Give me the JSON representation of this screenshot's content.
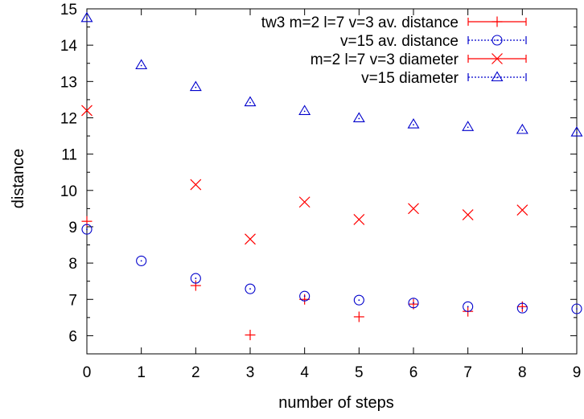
{
  "chart_data": {
    "type": "scatter",
    "title": "",
    "xlabel": "number of steps",
    "ylabel": "distance",
    "xlim": [
      0,
      9
    ],
    "ylim": [
      5.5,
      15
    ],
    "x_ticks": [
      "0",
      "1",
      "2",
      "3",
      "4",
      "5",
      "6",
      "7",
      "8",
      "9"
    ],
    "y_ticks": [
      "6",
      "7",
      "8",
      "9",
      "10",
      "11",
      "12",
      "13",
      "14",
      "15"
    ],
    "grid": false,
    "legend_position": "top-right",
    "series": [
      {
        "name": "tw3 m=2 l=7 v=3  av. distance",
        "marker": "plus",
        "color": "#ff0000",
        "x": [
          0,
          2,
          3,
          4,
          5,
          6,
          7,
          8
        ],
        "y": [
          9.15,
          7.38,
          6.02,
          7.0,
          6.52,
          6.87,
          6.67,
          6.8
        ]
      },
      {
        "name": "v=15 av. distance",
        "marker": "circle",
        "color": "#0000cc",
        "x": [
          0,
          1,
          2,
          3,
          4,
          5,
          6,
          7,
          8,
          9
        ],
        "y": [
          8.93,
          8.06,
          7.58,
          7.29,
          7.09,
          6.98,
          6.9,
          6.8,
          6.76,
          6.74
        ]
      },
      {
        "name": "m=2 l=7 v=3 diameter",
        "marker": "x",
        "color": "#ff0000",
        "x": [
          0,
          2,
          3,
          4,
          5,
          6,
          7,
          8
        ],
        "y": [
          12.2,
          10.16,
          8.66,
          9.68,
          9.2,
          9.5,
          9.33,
          9.46
        ]
      },
      {
        "name": "v=15 diameter",
        "marker": "triangle",
        "color": "#0000cc",
        "x": [
          0,
          1,
          2,
          3,
          4,
          5,
          6,
          7,
          8,
          9
        ],
        "y": [
          14.75,
          13.45,
          12.85,
          12.43,
          12.19,
          11.99,
          11.82,
          11.75,
          11.67,
          11.6
        ]
      }
    ]
  }
}
